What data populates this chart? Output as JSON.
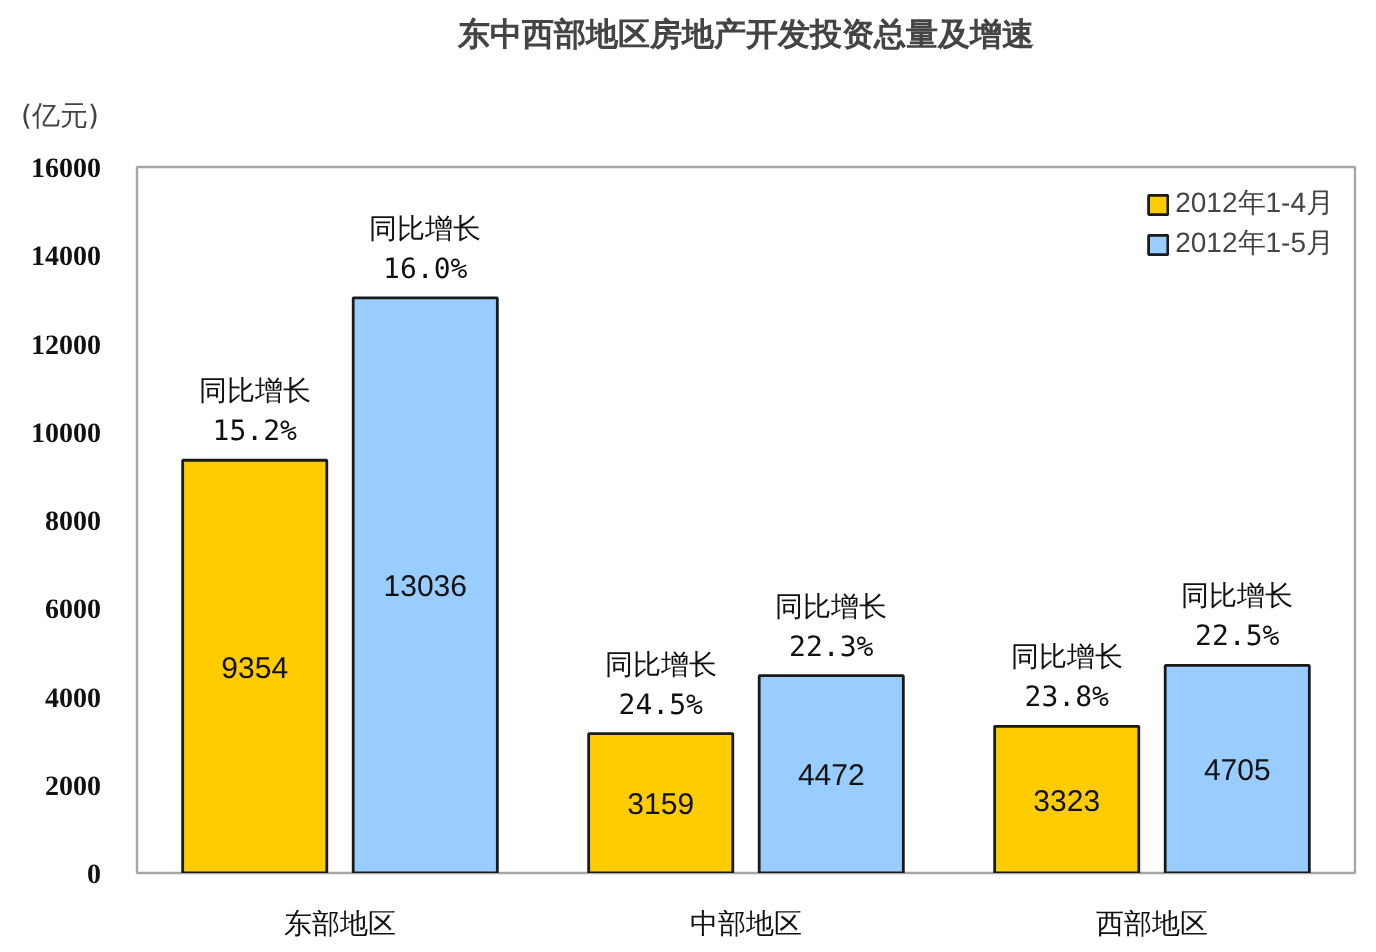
{
  "chart_data": {
    "type": "bar",
    "title": "东中西部地区房地产开发投资总量及增速",
    "ylabel": "(亿元)",
    "categories": [
      "东部地区",
      "中部地区",
      "西部地区"
    ],
    "series": [
      {
        "name": "2012年1-4月",
        "color": "#ffcc00",
        "values": [
          9354,
          3159,
          3323
        ]
      },
      {
        "name": "2012年1-5月",
        "color": "#99ccff",
        "values": [
          13036,
          4472,
          4705
        ]
      }
    ],
    "ylim": [
      0,
      16000
    ],
    "yticks": [
      0,
      2000,
      4000,
      6000,
      8000,
      10000,
      12000,
      14000,
      16000
    ],
    "data_labels": true,
    "legend": "top right",
    "grid": false,
    "annotations": [
      "同比增长\n15.2%",
      "同比增长\n16.0%",
      "同比增长\n24.5%",
      "同比增长\n22.3%",
      "同比增长\n23.8%",
      "同比增长\n22.5%"
    ]
  }
}
